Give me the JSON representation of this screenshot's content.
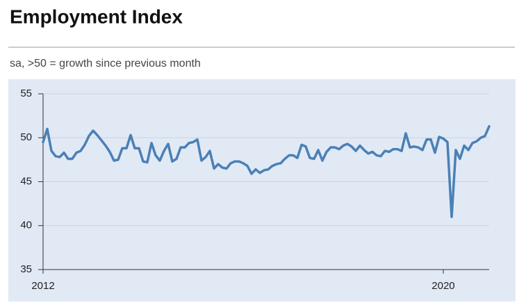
{
  "chart_data": {
    "type": "line",
    "title": "Employment Index",
    "subtitle": "sa, >50 = growth since previous month",
    "x": [
      2012,
      2012.083,
      2012.167,
      2012.25,
      2012.333,
      2012.417,
      2012.5,
      2012.583,
      2012.667,
      2012.75,
      2012.833,
      2012.917,
      2013,
      2013.083,
      2013.167,
      2013.25,
      2013.333,
      2013.417,
      2013.5,
      2013.583,
      2013.667,
      2013.75,
      2013.833,
      2013.917,
      2014,
      2014.083,
      2014.167,
      2014.25,
      2014.333,
      2014.417,
      2014.5,
      2014.583,
      2014.667,
      2014.75,
      2014.833,
      2014.917,
      2015,
      2015.083,
      2015.167,
      2015.25,
      2015.333,
      2015.417,
      2015.5,
      2015.583,
      2015.667,
      2015.75,
      2015.833,
      2015.917,
      2016,
      2016.083,
      2016.167,
      2016.25,
      2016.333,
      2016.417,
      2016.5,
      2016.583,
      2016.667,
      2016.75,
      2016.833,
      2016.917,
      2017,
      2017.083,
      2017.167,
      2017.25,
      2017.333,
      2017.417,
      2017.5,
      2017.583,
      2017.667,
      2017.75,
      2017.833,
      2017.917,
      2018,
      2018.083,
      2018.167,
      2018.25,
      2018.333,
      2018.417,
      2018.5,
      2018.583,
      2018.667,
      2018.75,
      2018.833,
      2018.917,
      2019,
      2019.083,
      2019.167,
      2019.25,
      2019.333,
      2019.417,
      2019.5,
      2019.583,
      2019.667,
      2019.75,
      2019.833,
      2019.917,
      2020,
      2020.083,
      2020.167,
      2020.25,
      2020.333,
      2020.417,
      2020.5,
      2020.583,
      2020.667,
      2020.75,
      2020.833,
      2020.917
    ],
    "series": [
      {
        "color": "#4a80b6",
        "values": [
          49.5,
          51,
          48.5,
          47.9,
          47.8,
          48.3,
          47.6,
          47.6,
          48.3,
          48.5,
          49.2,
          50.2,
          50.8,
          50.3,
          49.7,
          49.1,
          48.4,
          47.4,
          47.5,
          48.8,
          48.8,
          50.3,
          48.8,
          48.8,
          47.3,
          47.2,
          49.4,
          48,
          47.4,
          48.5,
          49.3,
          47.3,
          47.6,
          48.9,
          48.9,
          49.4,
          49.5,
          49.8,
          47.4,
          47.8,
          48.5,
          46.5,
          47,
          46.6,
          46.5,
          47.1,
          47.3,
          47.3,
          47.1,
          46.8,
          45.9,
          46.4,
          46,
          46.3,
          46.4,
          46.8,
          47,
          47.1,
          47.6,
          48,
          48,
          47.7,
          49.2,
          49,
          47.7,
          47.6,
          48.6,
          47.4,
          48.4,
          48.9,
          48.9,
          48.7,
          49.1,
          49.3,
          49,
          48.5,
          49.1,
          48.6,
          48.2,
          48.4,
          48,
          47.9,
          48.5,
          48.4,
          48.7,
          48.7,
          48.5,
          50.5,
          48.9,
          49,
          48.9,
          48.6,
          49.8,
          49.8,
          48.3,
          50.1,
          49.9,
          49.5,
          41,
          48.6,
          47.6,
          49.1,
          48.6,
          49.4,
          49.6,
          50,
          50.2,
          51.3
        ]
      }
    ],
    "xlim": [
      2012,
      2020.917
    ],
    "xticks": [
      2012,
      2020
    ],
    "ylim": [
      35,
      55
    ],
    "yticks": [
      35,
      40,
      45,
      50,
      55
    ],
    "grid": true
  }
}
